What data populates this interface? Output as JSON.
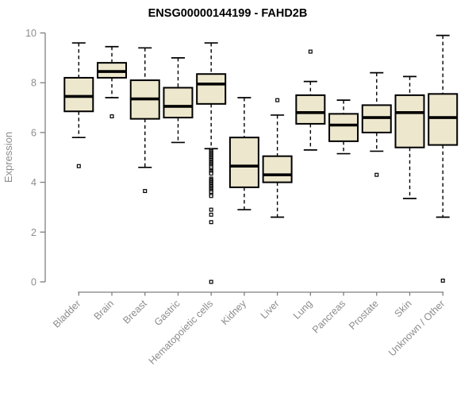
{
  "colors": {
    "background": "#ffffff",
    "box_fill": "#EDE7CD",
    "box_border": "#000000",
    "median_line": "#000000",
    "axis_line": "#7F7F7F",
    "tick_label": "#8C8C8C",
    "title_text": "#000000"
  },
  "chart_data": {
    "type": "boxplot",
    "title": "ENSG00000144199 - FAHD2B",
    "xlabel": "",
    "ylabel": "Expression",
    "ylim": [
      0,
      10
    ],
    "yticks": [
      0,
      2,
      4,
      6,
      8,
      10
    ],
    "grid": false,
    "legend": false,
    "categories": [
      "Bladder",
      "Brain",
      "Breast",
      "Gastric",
      "Hematopoietic cells",
      "Kidney",
      "Liver",
      "Lung",
      "Pancreas",
      "Prostate",
      "Skin",
      "Unknown / Other"
    ],
    "series": [
      {
        "name": "Bladder",
        "whisker_low": 5.8,
        "q1": 6.85,
        "median": 7.45,
        "q3": 8.2,
        "whisker_high": 9.6,
        "outliers": [
          4.65
        ]
      },
      {
        "name": "Brain",
        "whisker_low": 7.4,
        "q1": 8.2,
        "median": 8.45,
        "q3": 8.8,
        "whisker_high": 9.45,
        "outliers": [
          6.65
        ]
      },
      {
        "name": "Breast",
        "whisker_low": 4.6,
        "q1": 6.55,
        "median": 7.35,
        "q3": 8.1,
        "whisker_high": 9.4,
        "outliers": [
          3.65
        ]
      },
      {
        "name": "Gastric",
        "whisker_low": 5.6,
        "q1": 6.6,
        "median": 7.05,
        "q3": 7.8,
        "whisker_high": 9.0,
        "outliers": []
      },
      {
        "name": "Hematopoietic cells",
        "whisker_low": 5.35,
        "q1": 7.15,
        "median": 7.95,
        "q3": 8.35,
        "whisker_high": 9.6,
        "outliers": [
          5.3,
          5.25,
          5.2,
          5.15,
          5.1,
          5.05,
          5.0,
          4.95,
          4.9,
          4.85,
          4.8,
          4.75,
          4.7,
          4.65,
          4.6,
          4.5,
          4.45,
          4.4,
          4.35,
          4.15,
          4.1,
          4.05,
          4.0,
          3.95,
          3.9,
          3.85,
          3.8,
          3.75,
          3.7,
          3.65,
          3.6,
          3.5,
          3.45,
          2.9,
          2.7,
          2.4,
          0.0
        ]
      },
      {
        "name": "Kidney",
        "whisker_low": 2.9,
        "q1": 3.8,
        "median": 4.65,
        "q3": 5.8,
        "whisker_high": 7.4,
        "outliers": []
      },
      {
        "name": "Liver",
        "whisker_low": 2.6,
        "q1": 4.0,
        "median": 4.3,
        "q3": 5.05,
        "whisker_high": 6.7,
        "outliers": [
          7.3
        ]
      },
      {
        "name": "Lung",
        "whisker_low": 5.3,
        "q1": 6.35,
        "median": 6.8,
        "q3": 7.5,
        "whisker_high": 8.05,
        "outliers": [
          9.25
        ]
      },
      {
        "name": "Pancreas",
        "whisker_low": 5.15,
        "q1": 5.65,
        "median": 6.3,
        "q3": 6.75,
        "whisker_high": 7.3,
        "outliers": []
      },
      {
        "name": "Prostate",
        "whisker_low": 5.25,
        "q1": 6.0,
        "median": 6.6,
        "q3": 7.1,
        "whisker_high": 8.4,
        "outliers": [
          4.3
        ]
      },
      {
        "name": "Skin",
        "whisker_low": 3.35,
        "q1": 5.4,
        "median": 6.8,
        "q3": 7.5,
        "whisker_high": 8.25,
        "outliers": []
      },
      {
        "name": "Unknown / Other",
        "whisker_low": 2.6,
        "q1": 5.5,
        "median": 6.6,
        "q3": 7.55,
        "whisker_high": 9.9,
        "outliers": [
          0.05
        ]
      }
    ]
  }
}
